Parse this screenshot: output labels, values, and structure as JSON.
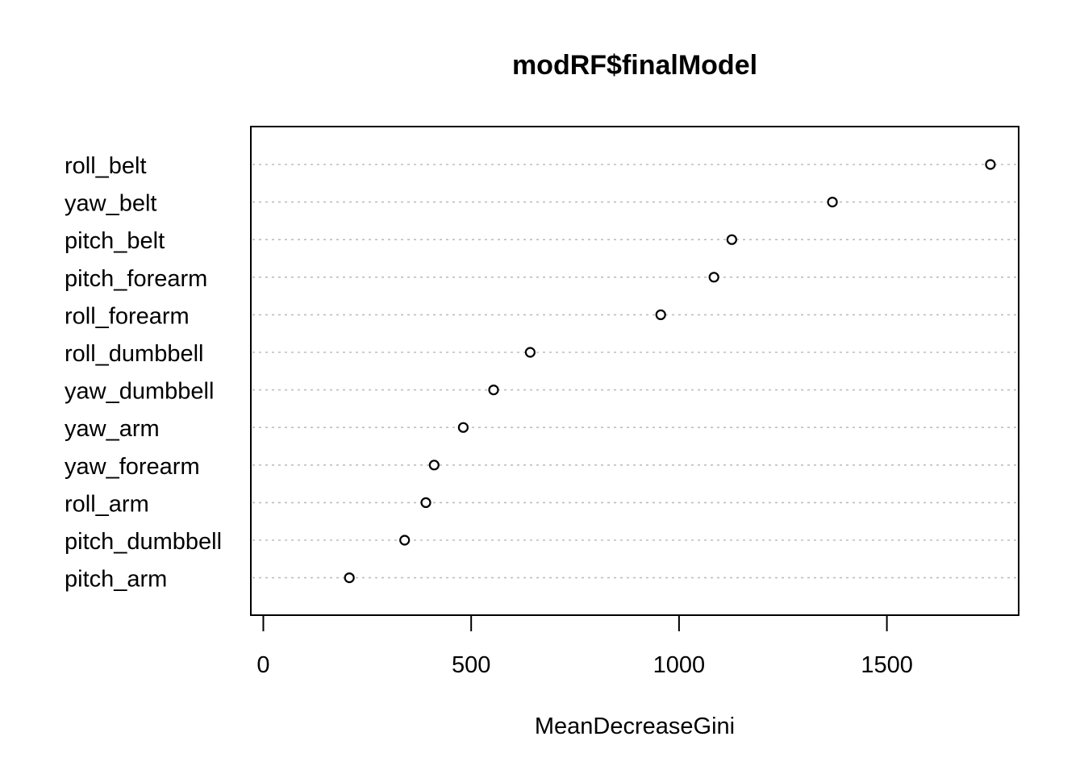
{
  "chart_data": {
    "type": "scatter",
    "title": "modRF$finalModel",
    "xlabel": "MeanDecreaseGini",
    "ylabel": "",
    "xlim": [
      -30,
      1817
    ],
    "xticks": [
      0,
      500,
      1000,
      1500
    ],
    "grid": "dotted horizontal guides",
    "categories": [
      "roll_belt",
      "yaw_belt",
      "pitch_belt",
      "pitch_forearm",
      "roll_forearm",
      "roll_dumbbell",
      "yaw_dumbbell",
      "yaw_arm",
      "yaw_forearm",
      "roll_arm",
      "pitch_dumbbell",
      "pitch_arm"
    ],
    "values": [
      1749,
      1369,
      1127,
      1084,
      956,
      642,
      554,
      481,
      411,
      391,
      340,
      207
    ]
  }
}
